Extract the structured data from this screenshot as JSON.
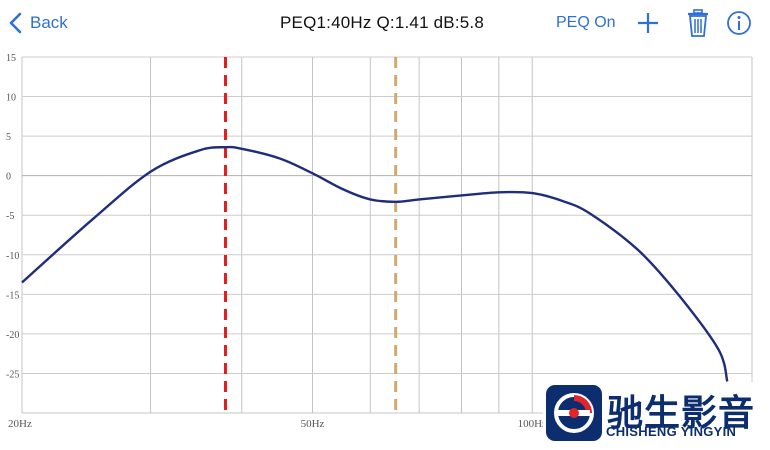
{
  "header": {
    "back_label": "Back",
    "title": "PEQ1:40Hz Q:1.41 dB:5.8",
    "peq_toggle_label": "PEQ On",
    "icons": [
      "chevron-left-icon",
      "plus-icon",
      "trash-icon",
      "info-icon"
    ],
    "accent_color": "#2f6fd6"
  },
  "chart_data": {
    "type": "line",
    "x_scale": "log",
    "xlim": [
      20,
      200
    ],
    "ylim": [
      -30,
      15
    ],
    "y_ticks": [
      15,
      10,
      5,
      0,
      -5,
      -10,
      -15,
      -20,
      -25
    ],
    "x_ticks": [
      {
        "value": 20,
        "label": "20Hz"
      },
      {
        "value": 50,
        "label": "50Hz"
      },
      {
        "value": 100,
        "label": "100Hz"
      }
    ],
    "grid": true,
    "series": [
      {
        "color": "#1f2d7a",
        "x": [
          20,
          25,
          30,
          35,
          38,
          40,
          45,
          50,
          55,
          60,
          65,
          70,
          80,
          90,
          100,
          110,
          120,
          140,
          160,
          180,
          185
        ],
        "y": [
          -13.5,
          -5.5,
          0.5,
          3.2,
          3.6,
          3.4,
          2.2,
          0.3,
          -1.7,
          -3.0,
          -3.3,
          -3.0,
          -2.5,
          -2.1,
          -2.2,
          -3.2,
          -4.8,
          -9.5,
          -15.5,
          -22.0,
          -26.0
        ]
      }
    ],
    "markers": [
      {
        "x": 38,
        "color": "#e02020",
        "style": "dashed"
      },
      {
        "x": 65,
        "color": "#d2a872",
        "style": "dashed"
      }
    ]
  },
  "logo": {
    "cn": "驰生影音",
    "en": "CHISHENG YINGYIN",
    "brand_color": "#0d2e6e",
    "accent_color": "#e0262c",
    "icon": "logo-mark-icon"
  }
}
